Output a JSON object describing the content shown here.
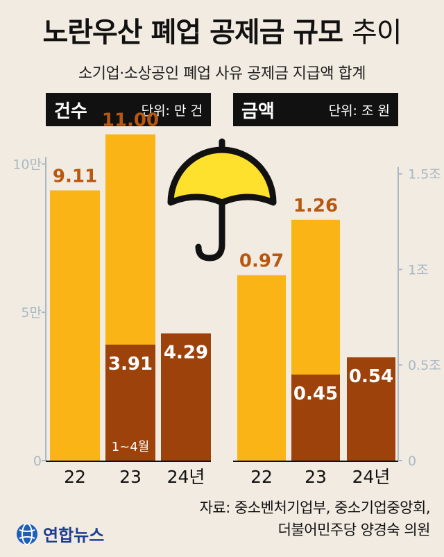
{
  "title": "노란우산 폐업 공제금 규모",
  "title_suffix": "추이",
  "subtitle": "소기업·소상공인 폐업 사유 공제금 지급액 합계",
  "colors": {
    "total": "#fbb416",
    "partial": "#9c420a",
    "label_dark": "#b8570f",
    "axis": "#a9b8c4",
    "bg": "#f2ebe1"
  },
  "source_lines": [
    "자료: 중소벤처기업부, 중소기업중앙회,",
    "더불어민주당 양경숙 의원"
  ],
  "logo_text": "연합뉴스",
  "logo_icon": "yonhap-globe-icon",
  "decoration_icon": "umbrella-icon",
  "chart_data": [
    {
      "type": "bar",
      "header": "건수",
      "unit": "단위: 만 건",
      "categories": [
        "22",
        "23",
        "24년"
      ],
      "series": [
        {
          "values": [
            9.11,
            11.0,
            null
          ]
        },
        {
          "values": [
            null,
            3.91,
            4.29
          ]
        }
      ],
      "value_labels": [
        [
          "9.11",
          "11.00",
          ""
        ],
        [
          "",
          "3.91",
          "4.29"
        ]
      ],
      "annotation": "1~4월",
      "yticks": [
        0,
        5,
        10
      ],
      "ytick_labels": [
        "0",
        "5만",
        "10만"
      ],
      "ylim": [
        0,
        11.6
      ],
      "axis_side": "left"
    },
    {
      "type": "bar",
      "header": "금액",
      "unit": "단위: 조 원",
      "categories": [
        "22",
        "23",
        "24년"
      ],
      "series": [
        {
          "values": [
            0.97,
            1.26,
            null
          ]
        },
        {
          "values": [
            null,
            0.45,
            0.54
          ]
        }
      ],
      "value_labels": [
        [
          "0.97",
          "1.26",
          ""
        ],
        [
          "",
          "0.45",
          "0.54"
        ]
      ],
      "yticks": [
        0,
        0.5,
        1,
        1.5
      ],
      "ytick_labels": [
        "0",
        "0.5조",
        "1조",
        "1.5조"
      ],
      "ylim": [
        0,
        1.8
      ],
      "axis_side": "right"
    }
  ]
}
